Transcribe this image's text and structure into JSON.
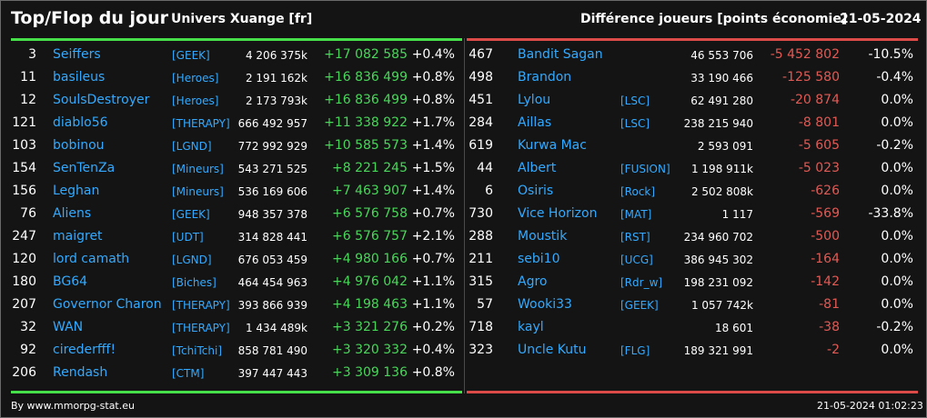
{
  "header": {
    "title": "Top/Flop du jour",
    "universe": "Univers Xuange [fr]",
    "subtitle": "Différence joueurs [points économie]",
    "date": "21-05-2024"
  },
  "colors": {
    "gain": "#49d65a",
    "loss": "#e05a55",
    "link": "#33aaff",
    "background": "#141414"
  },
  "top": [
    {
      "rank": "3",
      "name": "Seiffers",
      "alliance": "[GEEK]",
      "points": "4 206 375k",
      "diff": "+17 082 585",
      "pct": "+0.4%"
    },
    {
      "rank": "11",
      "name": "basileus",
      "alliance": "[Heroes]",
      "points": "2 191 162k",
      "diff": "+16 836 499",
      "pct": "+0.8%"
    },
    {
      "rank": "12",
      "name": "SoulsDestroyer",
      "alliance": "[Heroes]",
      "points": "2 173 793k",
      "diff": "+16 836 499",
      "pct": "+0.8%"
    },
    {
      "rank": "121",
      "name": "diablo56",
      "alliance": "[THERAPY]",
      "points": "666 492 957",
      "diff": "+11 338 922",
      "pct": "+1.7%"
    },
    {
      "rank": "103",
      "name": "bobinou",
      "alliance": "[LGND]",
      "points": "772 992 929",
      "diff": "+10 585 573",
      "pct": "+1.4%"
    },
    {
      "rank": "154",
      "name": "SenTenZa",
      "alliance": "[Mineurs]",
      "points": "543 271 525",
      "diff": "+8 221 245",
      "pct": "+1.5%"
    },
    {
      "rank": "156",
      "name": "Leghan",
      "alliance": "[Mineurs]",
      "points": "536 169 606",
      "diff": "+7 463 907",
      "pct": "+1.4%"
    },
    {
      "rank": "76",
      "name": "Aliens",
      "alliance": "[GEEK]",
      "points": "948 357 378",
      "diff": "+6 576 758",
      "pct": "+0.7%"
    },
    {
      "rank": "247",
      "name": "maigret",
      "alliance": "[UDT]",
      "points": "314 828 441",
      "diff": "+6 576 757",
      "pct": "+2.1%"
    },
    {
      "rank": "120",
      "name": "lord camath",
      "alliance": "[LGND]",
      "points": "676 053 459",
      "diff": "+4 980 166",
      "pct": "+0.7%"
    },
    {
      "rank": "180",
      "name": "BG64",
      "alliance": "[Biches]",
      "points": "464 454 963",
      "diff": "+4 976 042",
      "pct": "+1.1%"
    },
    {
      "rank": "207",
      "name": "Governor Charon",
      "alliance": "[THERAPY]",
      "points": "393 866 939",
      "diff": "+4 198 463",
      "pct": "+1.1%"
    },
    {
      "rank": "32",
      "name": "WAN",
      "alliance": "[THERAPY]",
      "points": "1 434 489k",
      "diff": "+3 321 276",
      "pct": "+0.2%"
    },
    {
      "rank": "92",
      "name": "cirederfff!",
      "alliance": "[TchiTchi]",
      "points": "858 781 490",
      "diff": "+3 320 332",
      "pct": "+0.4%"
    },
    {
      "rank": "206",
      "name": "Rendash",
      "alliance": "[CTM]",
      "points": "397 447 443",
      "diff": "+3 309 136",
      "pct": "+0.8%"
    }
  ],
  "flop": [
    {
      "rank": "467",
      "name": "Bandit Sagan",
      "alliance": "",
      "points": "46 553 706",
      "diff": "-5 452 802",
      "pct": "-10.5%"
    },
    {
      "rank": "498",
      "name": "Brandon",
      "alliance": "",
      "points": "33 190 466",
      "diff": "-125 580",
      "pct": "-0.4%"
    },
    {
      "rank": "451",
      "name": "Lylou",
      "alliance": "[LSC]",
      "points": "62 491 280",
      "diff": "-20 874",
      "pct": "0.0%"
    },
    {
      "rank": "284",
      "name": "Aillas",
      "alliance": "[LSC]",
      "points": "238 215 940",
      "diff": "-8 801",
      "pct": "0.0%"
    },
    {
      "rank": "619",
      "name": "Kurwa Mac",
      "alliance": "",
      "points": "2 593 091",
      "diff": "-5 605",
      "pct": "-0.2%"
    },
    {
      "rank": "44",
      "name": "Albert",
      "alliance": "[FUSION]",
      "points": "1 198 911k",
      "diff": "-5 023",
      "pct": "0.0%"
    },
    {
      "rank": "6",
      "name": "Osiris",
      "alliance": "[Rock]",
      "points": "2 502 808k",
      "diff": "-626",
      "pct": "0.0%"
    },
    {
      "rank": "730",
      "name": "Vice Horizon",
      "alliance": "[MAT]",
      "points": "1 117",
      "diff": "-569",
      "pct": "-33.8%"
    },
    {
      "rank": "288",
      "name": "Moustik",
      "alliance": "[RST]",
      "points": "234 960 702",
      "diff": "-500",
      "pct": "0.0%"
    },
    {
      "rank": "211",
      "name": "sebi10",
      "alliance": "[UCG]",
      "points": "386 945 302",
      "diff": "-164",
      "pct": "0.0%"
    },
    {
      "rank": "315",
      "name": "Agro",
      "alliance": "[Rdr_w]",
      "points": "198 231 092",
      "diff": "-142",
      "pct": "0.0%"
    },
    {
      "rank": "57",
      "name": "Wooki33",
      "alliance": "[GEEK]",
      "points": "1 057 742k",
      "diff": "-81",
      "pct": "0.0%"
    },
    {
      "rank": "718",
      "name": "kayl",
      "alliance": "",
      "points": "18 601",
      "diff": "-38",
      "pct": "-0.2%"
    },
    {
      "rank": "323",
      "name": "Uncle Kutu",
      "alliance": "[FLG]",
      "points": "189 321 991",
      "diff": "-2",
      "pct": "0.0%"
    }
  ],
  "footer": {
    "credit": "By www.mmorpg-stat.eu",
    "timestamp": "21-05-2024 01:02:23"
  }
}
